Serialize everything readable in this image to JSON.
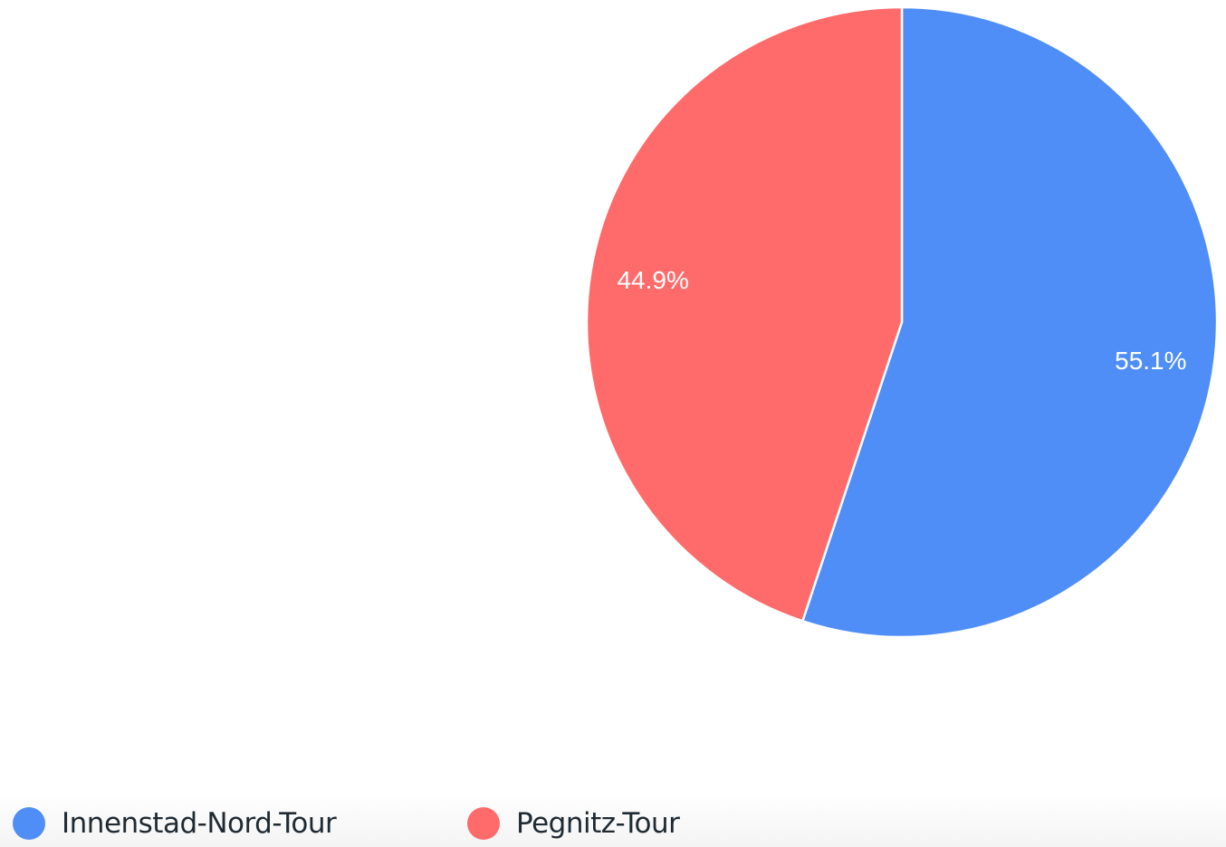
{
  "chart_data": {
    "type": "pie",
    "categories": [
      "Innenstad-Nord-Tour",
      "Pegnitz-Tour"
    ],
    "values": [
      55.1,
      44.9
    ],
    "value_labels": [
      "55.1%",
      "44.9%"
    ],
    "colors": [
      "#4f8ef7",
      "#ff6b6b"
    ],
    "legend_placement": "bottom-left",
    "start_angle": "12 o'clock",
    "direction": "clockwise"
  },
  "legend": {
    "items": [
      {
        "label": "Innenstad-Nord-Tour",
        "color": "#4f8ef7"
      },
      {
        "label": "Pegnitz-Tour",
        "color": "#ff6b6b"
      }
    ]
  }
}
